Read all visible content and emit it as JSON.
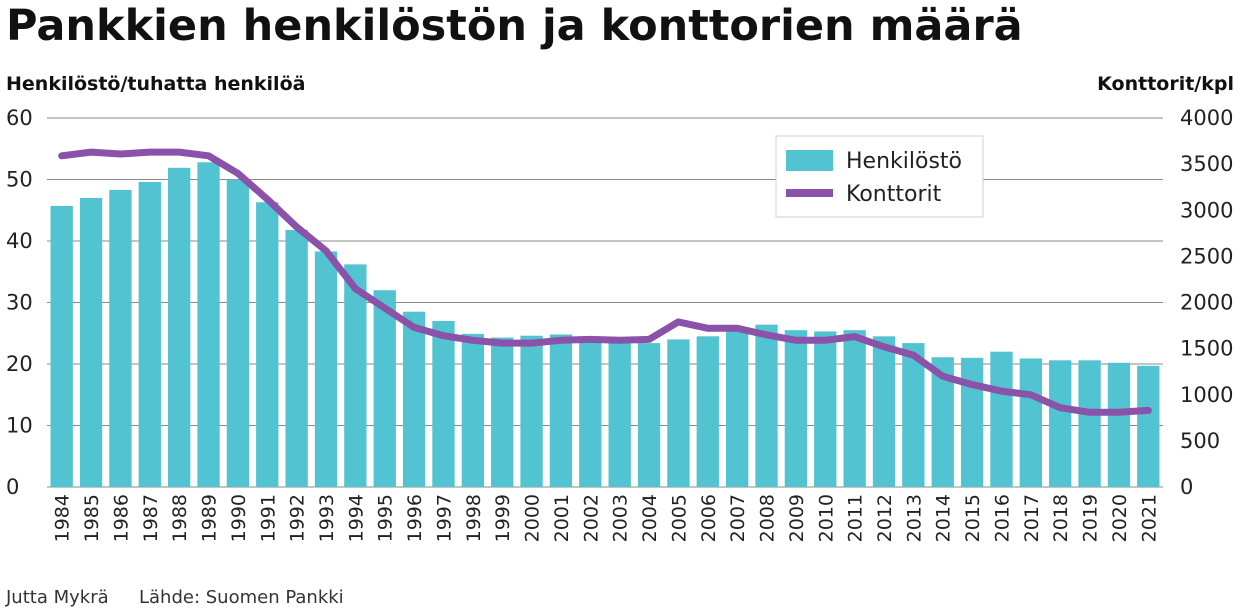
{
  "chart_data": {
    "type": "bar",
    "title": "Pankkien henkilöstön ja konttorien määrä",
    "ylabel_left": "Henkilöstö/tuhatta henkilöä",
    "ylabel_right": "Konttorit/kpl",
    "ylim_left": [
      0,
      60
    ],
    "ylim_right": [
      0,
      4000
    ],
    "yticks_left": [
      "0",
      "10",
      "20",
      "30",
      "40",
      "50",
      "60"
    ],
    "yticks_right": [
      "0",
      "500",
      "1000",
      "1500",
      "2000",
      "2500",
      "3000",
      "3500",
      "4000"
    ],
    "grid": true,
    "legend_position": "top-right",
    "categories": [
      "1984",
      "1985",
      "1986",
      "1987",
      "1988",
      "1989",
      "1990",
      "1991",
      "1992",
      "1993",
      "1994",
      "1995",
      "1996",
      "1997",
      "1998",
      "1999",
      "2000",
      "2001",
      "2002",
      "2003",
      "2004",
      "2005",
      "2006",
      "2007",
      "2008",
      "2009",
      "2010",
      "2011",
      "2012",
      "2013",
      "2014",
      "2015",
      "2016",
      "2017",
      "2018",
      "2019",
      "2020",
      "2021"
    ],
    "series": [
      {
        "name": "Henkilöstö",
        "type": "bar",
        "axis": "left",
        "color": "#52c3d1",
        "values": [
          45.7,
          47.0,
          48.3,
          49.6,
          51.9,
          52.8,
          50.0,
          46.3,
          41.8,
          38.3,
          36.2,
          32.0,
          28.5,
          27.0,
          24.9,
          24.3,
          24.6,
          24.8,
          24.1,
          23.8,
          23.4,
          24.0,
          24.5,
          25.5,
          26.4,
          25.5,
          25.3,
          25.5,
          24.5,
          23.4,
          21.1,
          21.0,
          22.0,
          20.9,
          20.6,
          20.6,
          20.2,
          19.7
        ]
      },
      {
        "name": "Konttorit",
        "type": "line",
        "axis": "right",
        "color": "#8a52a8",
        "values": [
          3590,
          3630,
          3610,
          3630,
          3630,
          3590,
          3400,
          3120,
          2820,
          2560,
          2150,
          1940,
          1730,
          1640,
          1590,
          1560,
          1560,
          1590,
          1600,
          1590,
          1600,
          1790,
          1720,
          1720,
          1650,
          1590,
          1590,
          1630,
          1520,
          1430,
          1200,
          1110,
          1040,
          1000,
          860,
          810,
          810,
          830
        ]
      }
    ]
  },
  "footer": {
    "author": "Jutta Mykrä",
    "source": "Lähde: Suomen Pankki"
  }
}
